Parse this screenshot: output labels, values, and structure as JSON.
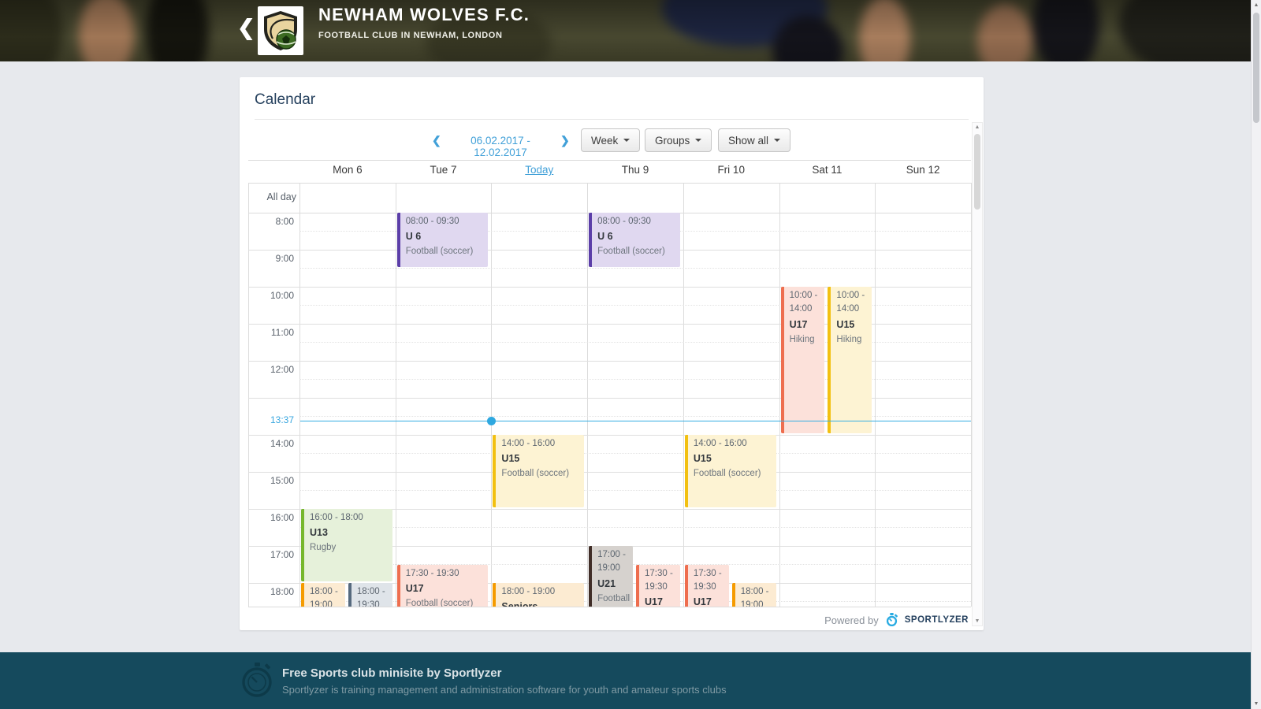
{
  "icons": {
    "back": "❮",
    "prev": "❮",
    "next": "❯",
    "scroll_up": "▲",
    "scroll_down": "▼"
  },
  "header": {
    "club_name": "NEWHAM WOLVES F.C.",
    "club_subtitle": "FOOTBALL CLUB IN NEWHAM, LONDON"
  },
  "card": {
    "title": "Calendar",
    "toolbar": {
      "date_range": "06.02.2017 - 12.02.2017",
      "view_button": "Week",
      "groups_button": "Groups",
      "filter_button": "Show all"
    }
  },
  "calendar": {
    "all_day_label": "All day",
    "day_headers": [
      {
        "label": "Mon 6"
      },
      {
        "label": "Tue 7"
      },
      {
        "label": "Today",
        "is_today": true
      },
      {
        "label": "Thu 9"
      },
      {
        "label": "Fri 10"
      },
      {
        "label": "Sat 11"
      },
      {
        "label": "Sun 12"
      }
    ],
    "hours": [
      {
        "label": "8:00"
      },
      {
        "label": "9:00"
      },
      {
        "label": "10:00"
      },
      {
        "label": "11:00"
      },
      {
        "label": "12:00"
      },
      {
        "label": ""
      },
      {
        "label": "14:00"
      },
      {
        "label": "15:00"
      },
      {
        "label": "16:00"
      },
      {
        "label": "17:00"
      },
      {
        "label": "18:00"
      }
    ],
    "current_time": {
      "label": "13:37",
      "hour": 13.6167,
      "day_index": 2
    },
    "events": [
      {
        "day": 1,
        "start": 8,
        "end": 9.5,
        "time": "08:00 - 09:30",
        "group": "U 6",
        "activity": "Football (soccer)",
        "color": "purple",
        "slot": "full"
      },
      {
        "day": 3,
        "start": 8,
        "end": 9.5,
        "time": "08:00 - 09:30",
        "group": "U 6",
        "activity": "Football (soccer)",
        "color": "purple",
        "slot": "full"
      },
      {
        "day": 5,
        "start": 10,
        "end": 14,
        "time": "10:00 - 14:00",
        "group": "U17",
        "activity": "Hiking",
        "color": "red",
        "slot": "left"
      },
      {
        "day": 5,
        "start": 10,
        "end": 14,
        "time": "10:00 - 14:00",
        "group": "U15",
        "activity": "Hiking",
        "color": "yellow",
        "slot": "right"
      },
      {
        "day": 2,
        "start": 14,
        "end": 16,
        "time": "14:00 - 16:00",
        "group": "U15",
        "activity": "Football (soccer)",
        "color": "yellow",
        "slot": "full"
      },
      {
        "day": 4,
        "start": 14,
        "end": 16,
        "time": "14:00 - 16:00",
        "group": "U15",
        "activity": "Football (soccer)",
        "color": "yellow",
        "slot": "full"
      },
      {
        "day": 0,
        "start": 16,
        "end": 18,
        "time": "16:00 - 18:00",
        "group": "U13",
        "activity": "Rugby",
        "color": "green",
        "slot": "full"
      },
      {
        "day": 0,
        "start": 18,
        "end": 19,
        "time": "18:00 - 19:00",
        "group": "",
        "activity": "",
        "color": "orange",
        "slot": "left"
      },
      {
        "day": 0,
        "start": 18,
        "end": 19.5,
        "time": "18:00 - 19:30",
        "group": "",
        "activity": "",
        "color": "slate",
        "slot": "right"
      },
      {
        "day": 1,
        "start": 17.5,
        "end": 19.5,
        "time": "17:30 - 19:30",
        "group": "U17",
        "activity": "Football (soccer)",
        "color": "red",
        "slot": "full"
      },
      {
        "day": 2,
        "start": 18,
        "end": 19,
        "time": "18:00 - 19:00",
        "group": "Seniors",
        "activity": "",
        "color": "orange",
        "slot": "full"
      },
      {
        "day": 3,
        "start": 17,
        "end": 19,
        "time": "17:00 - 19:00",
        "group": "U21",
        "activity": "Football (soccer)",
        "color": "brown",
        "slot": "left"
      },
      {
        "day": 3,
        "start": 17.5,
        "end": 19.5,
        "time": "17:30 - 19:30",
        "group": "U17",
        "activity": "",
        "color": "red",
        "slot": "right"
      },
      {
        "day": 4,
        "start": 17.5,
        "end": 19.5,
        "time": "17:30 - 19:30",
        "group": "U17",
        "activity": "",
        "color": "red",
        "slot": "left"
      },
      {
        "day": 4,
        "start": 18,
        "end": 19,
        "time": "18:00 - 19:00",
        "group": "",
        "activity": "",
        "color": "orange",
        "slot": "right"
      }
    ]
  },
  "powered_by": {
    "text": "Powered by",
    "brand": "SPORTLYZER"
  },
  "footer": {
    "title": "Free Sports club minisite by Sportlyzer",
    "subtitle": "Sportlyzer is training management and administration software for youth and amateur sports clubs"
  },
  "colors": {
    "accent_blue": "#41a0d8",
    "now_line": "#35aee3",
    "footer_bg": "#154a5d",
    "event_colors": {
      "purple": {
        "bg": "#e0d8f0",
        "border": "#5b3ea8"
      },
      "red": {
        "bg": "#fce1da",
        "border": "#ee6e4f"
      },
      "yellow": {
        "bg": "#fdf3d3",
        "border": "#f2c011"
      },
      "green": {
        "bg": "#e6f1da",
        "border": "#76b72c"
      },
      "orange": {
        "bg": "#fcebd2",
        "border": "#f59b00"
      },
      "slate": {
        "bg": "#dfe4e9",
        "border": "#566a7e"
      },
      "brown": {
        "bg": "#d6d2ce",
        "border": "#402d27"
      }
    }
  }
}
